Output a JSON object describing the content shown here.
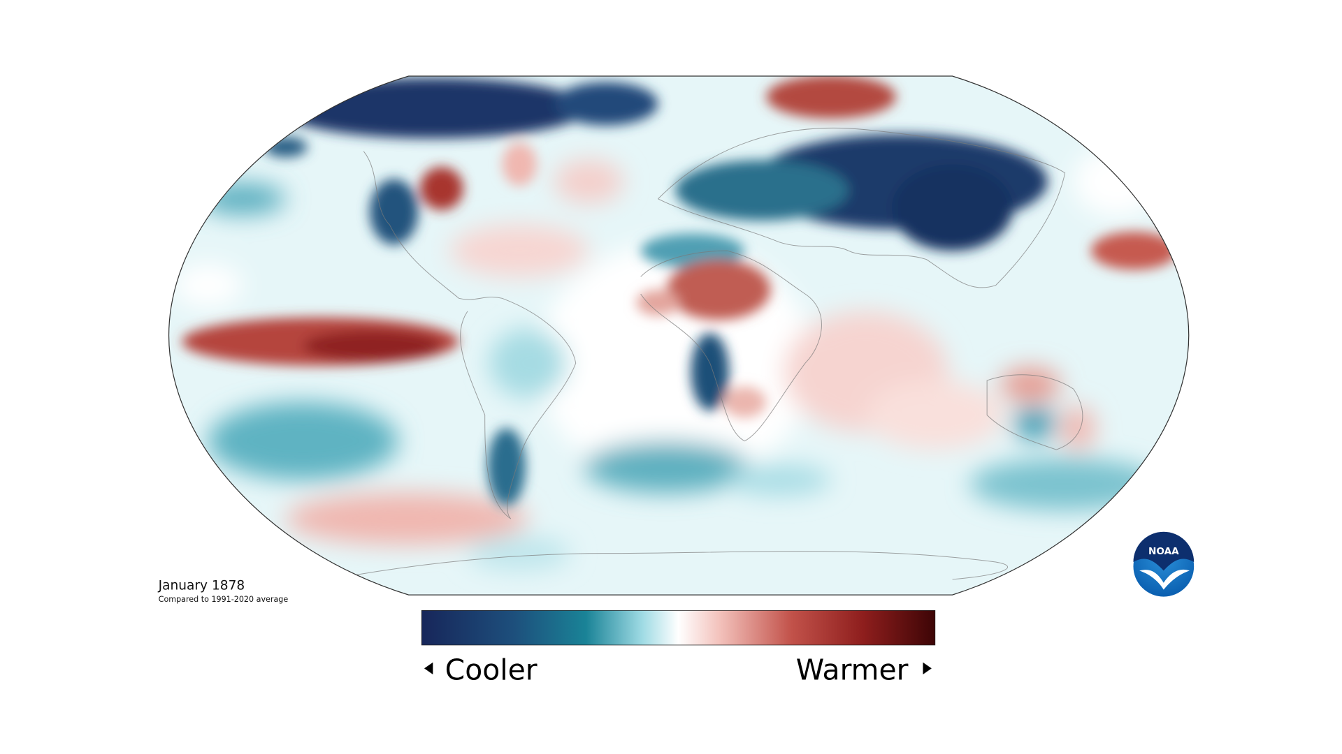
{
  "map": {
    "title": "January 1878",
    "subtitle": "Compared to 1991-2020 average"
  },
  "legend": {
    "low_label": "Cooler",
    "high_label": "Warmer"
  },
  "logo": {
    "text": "NOAA"
  }
}
